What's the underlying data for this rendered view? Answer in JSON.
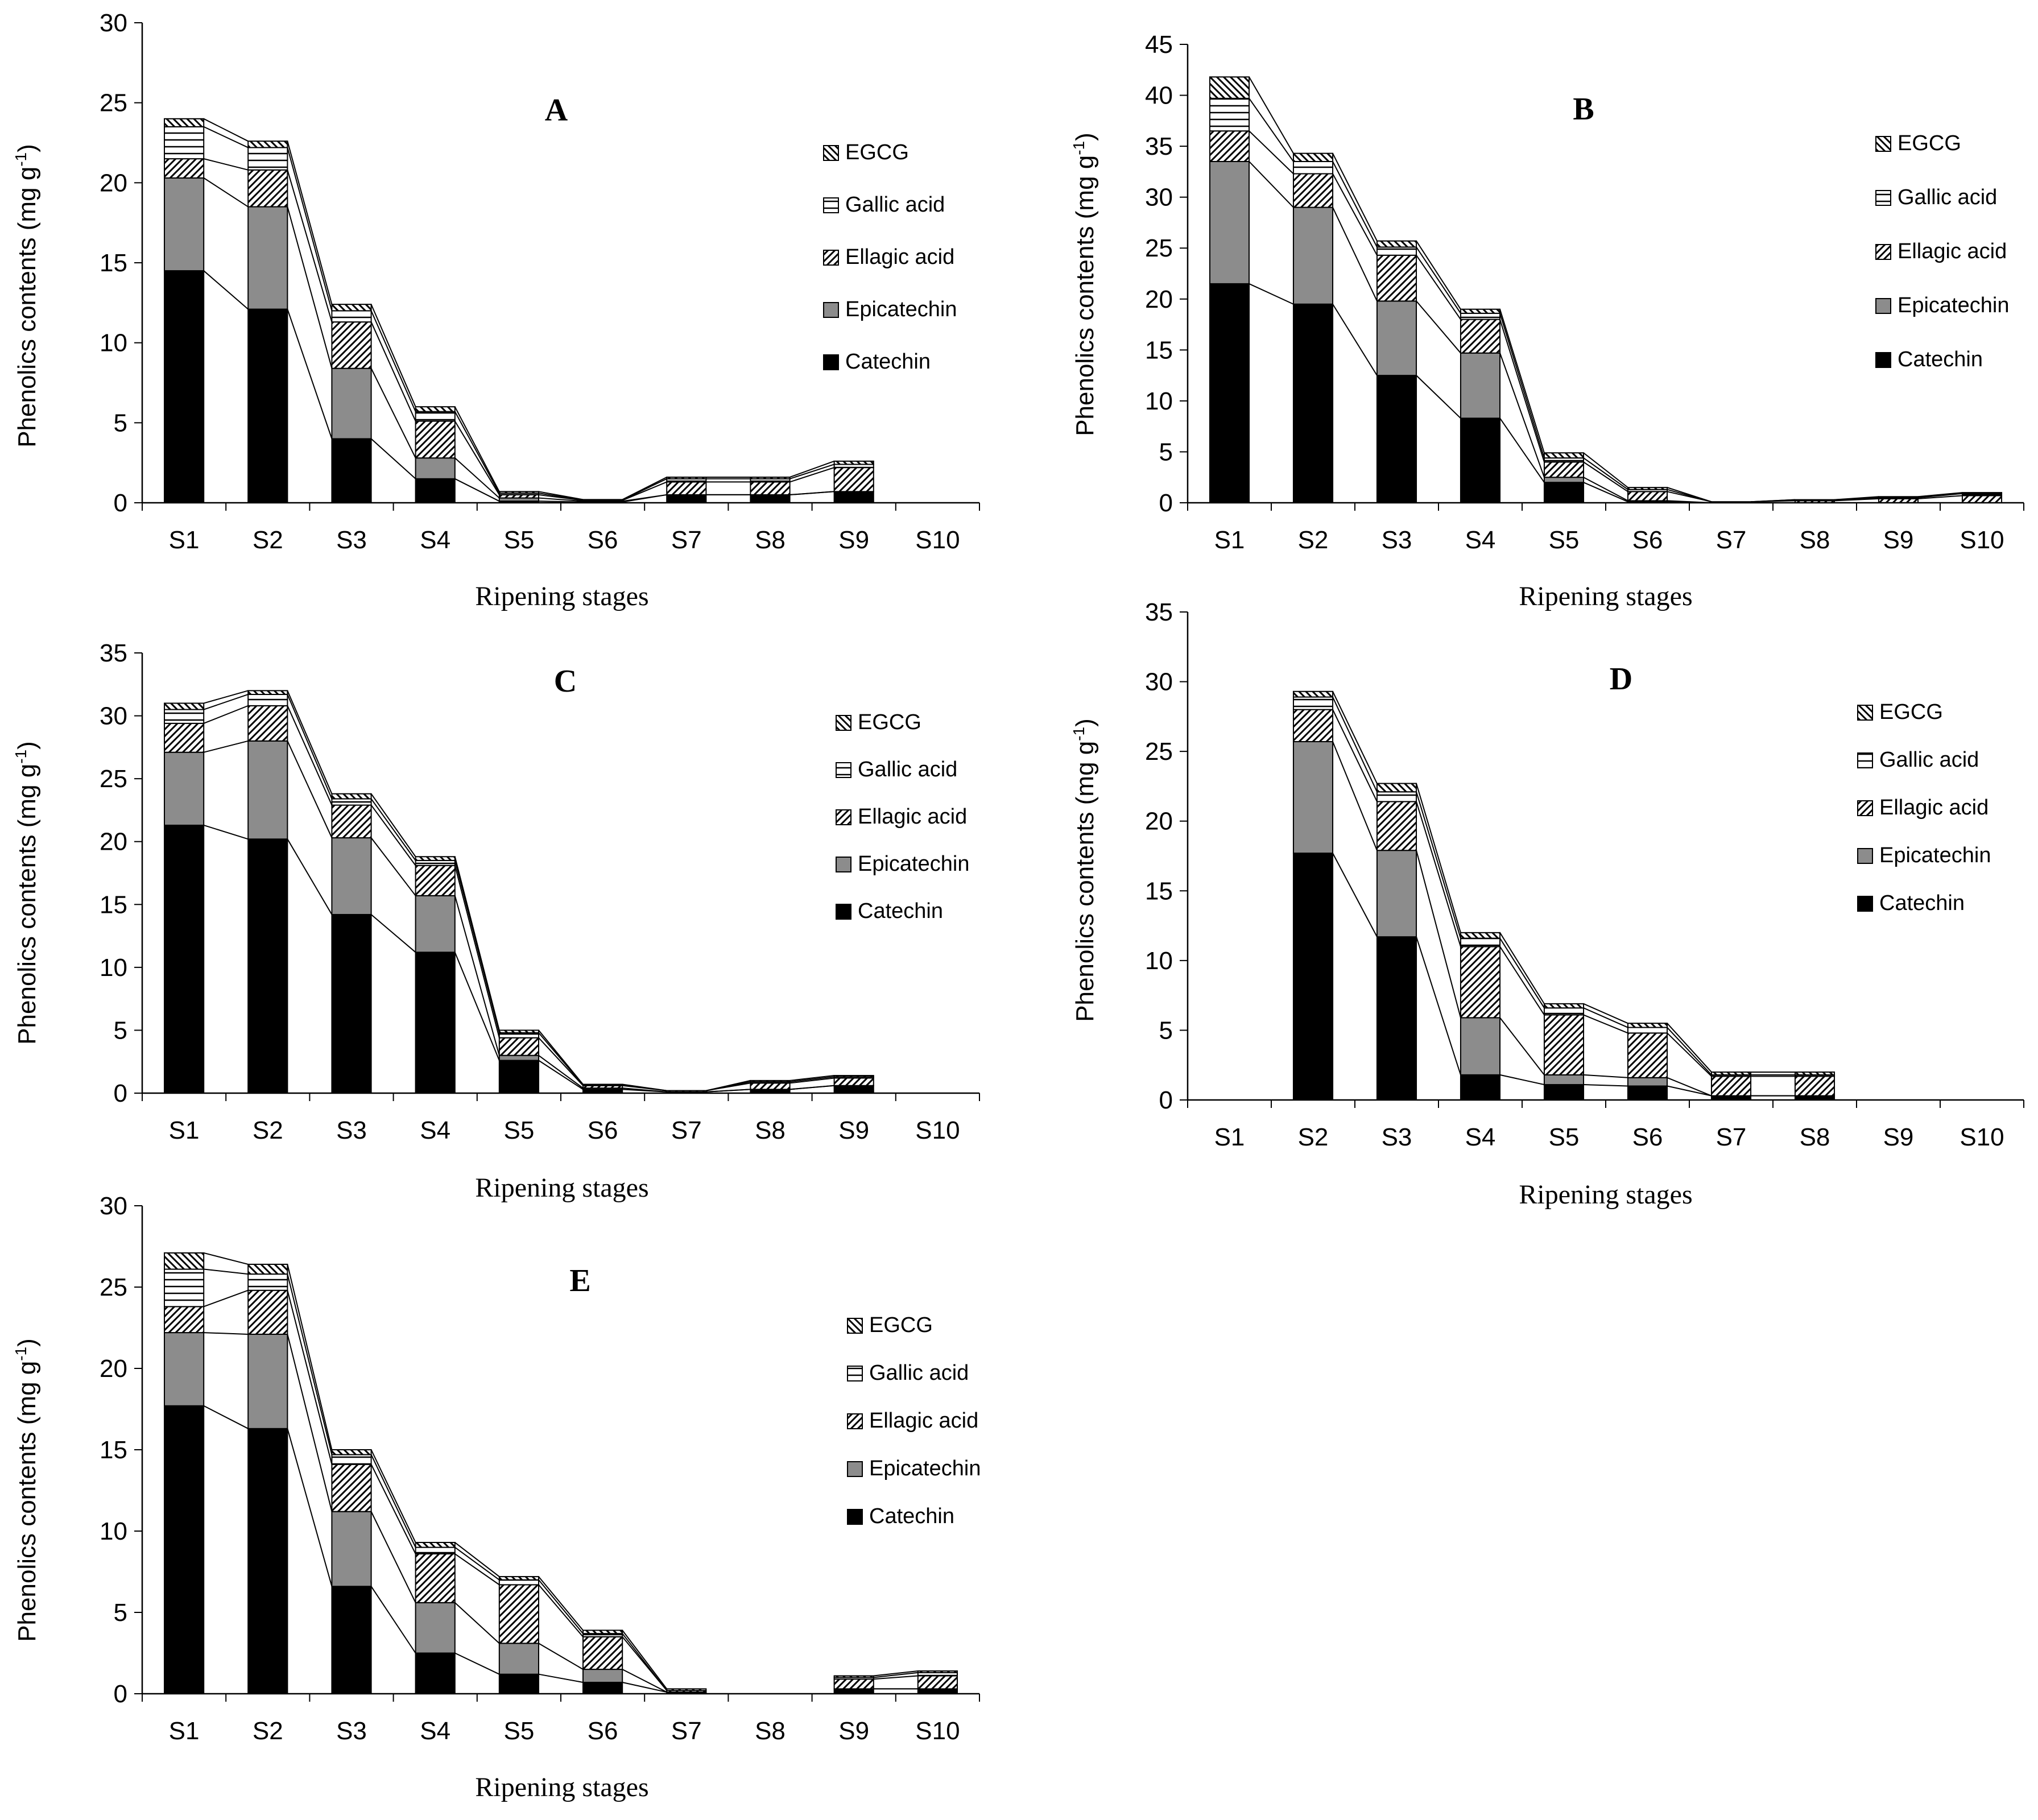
{
  "figure": {
    "series_names": [
      "Catechin",
      "Epicatechin",
      "Ellagic acid",
      "Gallic acid",
      "EGCG"
    ],
    "legend_order": [
      "EGCG",
      "Gallic acid",
      "Ellagic acid",
      "Epicatechin",
      "Catechin"
    ],
    "colors": {
      "Catechin": "#000000",
      "Epicatechin": "#8c8c8c",
      "Ellagic acid": "#ffffff",
      "Gallic acid": "#ffffff",
      "EGCG": "#ffffff",
      "axis": "#000000",
      "connector": "#000000"
    }
  },
  "chart_data": [
    {
      "type": "bar",
      "stacked": true,
      "panel": "A",
      "title": "A",
      "xlabel": "Ripening stages",
      "ylabel": "Phenolics contents (mg g-1)",
      "ylabel_main": "Phenolics contents (mg g",
      "ylabel_sup": "-1",
      "ylabel_close": ")",
      "ylim": [
        0,
        30
      ],
      "yticks": [
        "0",
        "5",
        "10",
        "15",
        "20",
        "25",
        "30"
      ],
      "categories": [
        "S1",
        "S2",
        "S3",
        "S4",
        "S5",
        "S6",
        "S7",
        "S8",
        "S9",
        "S10"
      ],
      "legend_labels": [
        "EGCG",
        "Gallic acid",
        "Ellagic acid",
        "Epicatechin",
        "Catechin"
      ],
      "series": [
        {
          "name": "Catechin",
          "values": [
            14.5,
            12.1,
            4.0,
            1.5,
            0.1,
            0.05,
            0.5,
            0.5,
            0.7,
            0
          ]
        },
        {
          "name": "Epicatechin",
          "values": [
            5.8,
            6.4,
            4.4,
            1.3,
            0.2,
            0.05,
            0.0,
            0.0,
            0.0,
            0
          ]
        },
        {
          "name": "Ellagic acid",
          "values": [
            1.2,
            2.3,
            2.9,
            2.3,
            0.2,
            0.05,
            0.8,
            0.8,
            1.5,
            0
          ]
        },
        {
          "name": "Gallic acid",
          "values": [
            2.0,
            1.4,
            0.7,
            0.6,
            0.1,
            0.02,
            0.2,
            0.2,
            0.2,
            0
          ]
        },
        {
          "name": "EGCG",
          "values": [
            0.5,
            0.4,
            0.4,
            0.3,
            0.1,
            0.03,
            0.1,
            0.1,
            0.2,
            0
          ]
        }
      ]
    },
    {
      "type": "bar",
      "stacked": true,
      "panel": "B",
      "title": "B",
      "xlabel": "Ripening stages",
      "ylabel": "Phenolics contents (mg g-1)",
      "ylabel_main": "Phenolics contents (mg g",
      "ylabel_sup": "-1",
      "ylabel_close": ")",
      "ylim": [
        0,
        45
      ],
      "yticks": [
        "0",
        "5",
        "10",
        "15",
        "20",
        "25",
        "30",
        "35",
        "40",
        "45"
      ],
      "categories": [
        "S1",
        "S2",
        "S3",
        "S4",
        "S5",
        "S6",
        "S7",
        "S8",
        "S9",
        "S10"
      ],
      "legend_labels": [
        "EGCG",
        "Gallic acid",
        "Ellagic acid",
        "Epicatechin",
        "Catechin"
      ],
      "series": [
        {
          "name": "Catechin",
          "values": [
            21.5,
            19.5,
            12.5,
            8.3,
            2.0,
            0.1,
            0.0,
            0.0,
            0.0,
            0.0
          ]
        },
        {
          "name": "Epicatechin",
          "values": [
            12.0,
            9.5,
            7.3,
            6.4,
            0.5,
            0.1,
            0.0,
            0.0,
            0.0,
            0.0
          ]
        },
        {
          "name": "Ellagic acid",
          "values": [
            3.0,
            3.3,
            4.5,
            3.3,
            1.5,
            0.9,
            0.1,
            0.2,
            0.4,
            0.7
          ]
        },
        {
          "name": "Gallic acid",
          "values": [
            3.2,
            1.2,
            0.8,
            0.6,
            0.4,
            0.2,
            0.0,
            0.1,
            0.1,
            0.2
          ]
        },
        {
          "name": "EGCG",
          "values": [
            2.1,
            0.8,
            0.6,
            0.4,
            0.5,
            0.2,
            0.0,
            0.0,
            0.1,
            0.1
          ]
        }
      ]
    },
    {
      "type": "bar",
      "stacked": true,
      "panel": "C",
      "title": "C",
      "xlabel": "Ripening stages",
      "ylabel": "Phenolics contents (mg g-1)",
      "ylabel_main": "Phenolics contents (mg g",
      "ylabel_sup": "-1",
      "ylabel_close": ")",
      "ylim": [
        0,
        35
      ],
      "yticks": [
        "0",
        "5",
        "10",
        "15",
        "20",
        "25",
        "30",
        "35"
      ],
      "categories": [
        "S1",
        "S2",
        "S3",
        "S4",
        "S5",
        "S6",
        "S7",
        "S8",
        "S9",
        "S10"
      ],
      "legend_labels": [
        "EGCG",
        "Gallic acid",
        "Ellagic acid",
        "Epicatechin",
        "Catechin"
      ],
      "series": [
        {
          "name": "Catechin",
          "values": [
            21.3,
            20.2,
            14.2,
            11.2,
            2.6,
            0.3,
            0.1,
            0.3,
            0.6,
            0
          ]
        },
        {
          "name": "Epicatechin",
          "values": [
            5.8,
            7.8,
            6.1,
            4.5,
            0.4,
            0.1,
            0.0,
            0.0,
            0.0,
            0
          ]
        },
        {
          "name": "Ellagic acid",
          "values": [
            2.3,
            2.8,
            2.6,
            2.4,
            1.4,
            0.2,
            0.1,
            0.5,
            0.6,
            0
          ]
        },
        {
          "name": "Gallic acid",
          "values": [
            1.1,
            0.9,
            0.5,
            0.4,
            0.4,
            0.05,
            0.0,
            0.1,
            0.1,
            0
          ]
        },
        {
          "name": "EGCG",
          "values": [
            0.5,
            0.3,
            0.4,
            0.3,
            0.2,
            0.05,
            0.0,
            0.1,
            0.1,
            0
          ]
        }
      ]
    },
    {
      "type": "bar",
      "stacked": true,
      "panel": "D",
      "title": "D",
      "xlabel": "Ripening stages",
      "ylabel": "Phenolics contents (mg g-1)",
      "ylabel_main": "Phenolics contents (mg g",
      "ylabel_sup": "-1",
      "ylabel_close": ")",
      "ylim": [
        0,
        35
      ],
      "yticks": [
        "0",
        "5",
        "10",
        "15",
        "20",
        "25",
        "30",
        "35"
      ],
      "categories": [
        "S1",
        "S2",
        "S3",
        "S4",
        "S5",
        "S6",
        "S7",
        "S8",
        "S9",
        "S10"
      ],
      "legend_labels": [
        "EGCG",
        "Gallic acid",
        "Ellagic acid",
        "Epicatechin",
        "Catechin"
      ],
      "series": [
        {
          "name": "Catechin",
          "values": [
            0,
            17.7,
            11.7,
            1.8,
            1.1,
            1.0,
            0.3,
            0.3,
            0,
            0
          ]
        },
        {
          "name": "Epicatechin",
          "values": [
            0,
            8.0,
            6.2,
            4.1,
            0.7,
            0.6,
            0.0,
            0.0,
            0,
            0
          ]
        },
        {
          "name": "Ellagic acid",
          "values": [
            0,
            2.3,
            3.5,
            5.1,
            4.3,
            3.2,
            1.4,
            1.4,
            0,
            0
          ]
        },
        {
          "name": "Gallic acid",
          "values": [
            0,
            0.9,
            0.7,
            0.6,
            0.5,
            0.4,
            0.1,
            0.1,
            0,
            0
          ]
        },
        {
          "name": "EGCG",
          "values": [
            0,
            0.4,
            0.6,
            0.4,
            0.3,
            0.3,
            0.2,
            0.2,
            0,
            0
          ]
        }
      ]
    },
    {
      "type": "bar",
      "stacked": true,
      "panel": "E",
      "title": "E",
      "xlabel": "Ripening stages",
      "ylabel": "Phenolics contents (mg g-1)",
      "ylabel_main": "Phenolics contents (mg g",
      "ylabel_sup": "-1",
      "ylabel_close": ")",
      "ylim": [
        0,
        30
      ],
      "yticks": [
        "0",
        "5",
        "10",
        "15",
        "20",
        "25",
        "30"
      ],
      "categories": [
        "S1",
        "S2",
        "S3",
        "S4",
        "S5",
        "S6",
        "S7",
        "S8",
        "S9",
        "S10"
      ],
      "legend_labels": [
        "EGCG",
        "Gallic acid",
        "Ellagic acid",
        "Epicatechin",
        "Catechin"
      ],
      "series": [
        {
          "name": "Catechin",
          "values": [
            17.7,
            16.3,
            6.6,
            2.5,
            1.2,
            0.7,
            0.1,
            0.0,
            0.3,
            0.3
          ]
        },
        {
          "name": "Epicatechin",
          "values": [
            4.5,
            5.8,
            4.6,
            3.1,
            1.9,
            0.8,
            0.0,
            0.0,
            0.0,
            0.0
          ]
        },
        {
          "name": "Ellagic acid",
          "values": [
            1.6,
            2.7,
            2.9,
            3.0,
            3.6,
            2.0,
            0.1,
            0.0,
            0.6,
            0.8
          ]
        },
        {
          "name": "Gallic acid",
          "values": [
            2.3,
            1.0,
            0.6,
            0.4,
            0.3,
            0.2,
            0.0,
            0.0,
            0.1,
            0.2
          ]
        },
        {
          "name": "EGCG",
          "values": [
            1.0,
            0.6,
            0.3,
            0.3,
            0.2,
            0.2,
            0.1,
            0.0,
            0.1,
            0.1
          ]
        }
      ]
    }
  ]
}
